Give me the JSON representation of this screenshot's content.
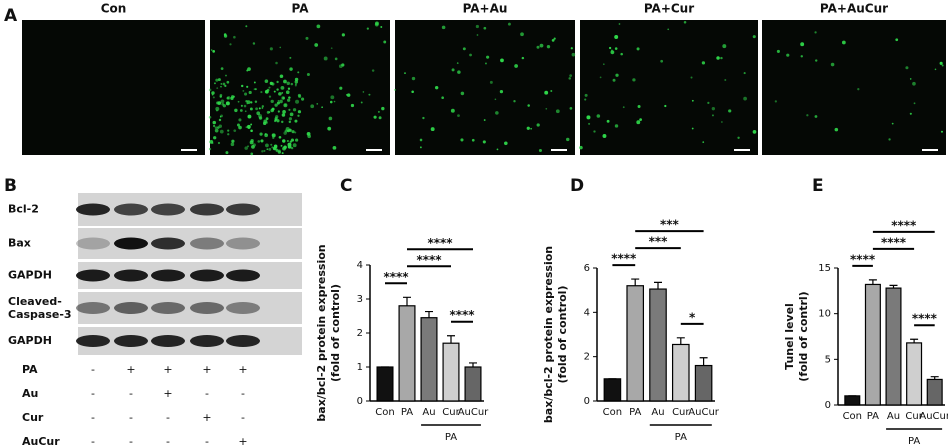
{
  "panel_a": {
    "letter": "A",
    "columns": [
      "Con",
      "PA",
      "PA+Au",
      "PA+Cur",
      "PA+AuCur"
    ]
  },
  "panel_b": {
    "letter": "B",
    "blot_labels": [
      "Bcl-2",
      "Bax",
      "GAPDH",
      "Cleaved-\nCaspase-3",
      "GAPDH"
    ],
    "treatments": [
      {
        "label": "PA",
        "marks": [
          "-",
          "+",
          "+",
          "+",
          "+"
        ]
      },
      {
        "label": "Au",
        "marks": [
          "-",
          "-",
          "+",
          "-",
          "-"
        ]
      },
      {
        "label": "Cur",
        "marks": [
          "-",
          "-",
          "-",
          "+",
          "-"
        ]
      },
      {
        "label": "AuCur",
        "marks": [
          "-",
          "-",
          "-",
          "-",
          "+"
        ]
      }
    ]
  },
  "chart_data": [
    {
      "type": "bar",
      "letter": "C",
      "ylabel": [
        "bax/bcl-2 protein expression",
        "(fold of control)"
      ],
      "categories": [
        "Con",
        "PA",
        "Au",
        "Cur",
        "AuCur"
      ],
      "values": [
        1.0,
        2.8,
        2.45,
        1.7,
        1.0
      ],
      "errors": [
        0.0,
        0.25,
        0.18,
        0.22,
        0.12
      ],
      "colors": [
        "#111111",
        "#a8a8a8",
        "#7a7a7a",
        "#cfcfcf",
        "#666666"
      ],
      "ylim": [
        0,
        4
      ],
      "yticks": [
        0,
        1,
        2,
        3,
        4
      ],
      "group": {
        "label": "PA",
        "from": 2,
        "to": 4
      },
      "significance": [
        {
          "label": "****",
          "from": 0,
          "to": 1
        },
        {
          "label": "****",
          "from": 3,
          "to": 4
        },
        {
          "label": "****",
          "from": 1,
          "to": 3
        },
        {
          "label": "****",
          "from": 1,
          "to": 4
        }
      ]
    },
    {
      "type": "bar",
      "letter": "D",
      "ylabel": [
        "bax/bcl-2 protein expression",
        "(fold of control)"
      ],
      "categories": [
        "Con",
        "PA",
        "Au",
        "Cur",
        "AuCur"
      ],
      "values": [
        1.0,
        5.2,
        5.05,
        2.55,
        1.6
      ],
      "errors": [
        0.0,
        0.3,
        0.3,
        0.3,
        0.35
      ],
      "colors": [
        "#111111",
        "#a8a8a8",
        "#7a7a7a",
        "#cfcfcf",
        "#666666"
      ],
      "ylim": [
        0,
        6
      ],
      "yticks": [
        0,
        2,
        4,
        6
      ],
      "group": {
        "label": "PA",
        "from": 2,
        "to": 4
      },
      "significance": [
        {
          "label": "****",
          "from": 0,
          "to": 1
        },
        {
          "label": "*",
          "from": 3,
          "to": 4
        },
        {
          "label": "***",
          "from": 1,
          "to": 3
        },
        {
          "label": "***",
          "from": 1,
          "to": 4
        }
      ]
    },
    {
      "type": "bar",
      "letter": "E",
      "ylabel": [
        "Tunel level",
        "(fold of contrl)"
      ],
      "categories": [
        "Con",
        "PA",
        "Au",
        "Cur",
        "AuCur"
      ],
      "values": [
        1.0,
        13.2,
        12.8,
        6.8,
        2.8
      ],
      "errors": [
        0.0,
        0.5,
        0.3,
        0.4,
        0.3
      ],
      "colors": [
        "#111111",
        "#a8a8a8",
        "#7a7a7a",
        "#cfcfcf",
        "#666666"
      ],
      "ylim": [
        0,
        15
      ],
      "yticks": [
        0,
        5,
        10,
        15
      ],
      "group": {
        "label": "PA",
        "from": 2,
        "to": 4
      },
      "significance": [
        {
          "label": "****",
          "from": 0,
          "to": 1
        },
        {
          "label": "****",
          "from": 3,
          "to": 4
        },
        {
          "label": "****",
          "from": 1,
          "to": 3
        },
        {
          "label": "****",
          "from": 1,
          "to": 4
        }
      ]
    }
  ]
}
